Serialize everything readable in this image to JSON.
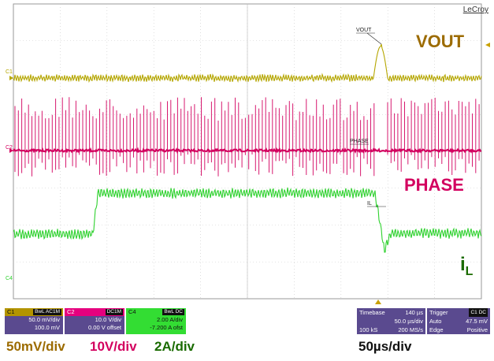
{
  "brand": "LeCroy",
  "colors": {
    "vout": "#b5a600",
    "phase": "#d3005f",
    "il": "#2fd12f",
    "vout_label": "#9c6b00",
    "il_label": "#1a6b00",
    "panel_bg": "#5a4a8f"
  },
  "labels": {
    "vout": "VOUT",
    "phase": "PHASE",
    "il_main": "i",
    "il_sub": "L",
    "probe_vout": "VOUT",
    "probe_phase": "PHASE",
    "probe_il": "IL"
  },
  "channel_markers": {
    "c1": "C1",
    "c2": "C2",
    "c4": "C4"
  },
  "channels": [
    {
      "id": "C1",
      "tag": "BwL AC1M",
      "line1": "50.0 mV/div",
      "line2": "100.0 mV"
    },
    {
      "id": "C2",
      "tag": "DC1M",
      "line1": "10.0 V/div",
      "line2": "0.00 V offset"
    },
    {
      "id": "C4",
      "tag": "BwL DC",
      "line1": "2.00 A/div",
      "line2": "-7.200 A ofst"
    }
  ],
  "timebase": {
    "label": "Timebase",
    "delay": "140 µs",
    "per_div": "50.0 µs/div",
    "samples": "100 kS",
    "rate": "200 MS/s"
  },
  "trigger": {
    "label": "Trigger",
    "source": "C1 DC",
    "mode": "Auto",
    "level": "47.5 mV",
    "type": "Edge",
    "slope": "Positive"
  },
  "captions": {
    "vout_scale": "50mV/div",
    "phase_scale": "10V/div",
    "il_scale": "2A/div",
    "time_scale": "50µs/div"
  }
}
